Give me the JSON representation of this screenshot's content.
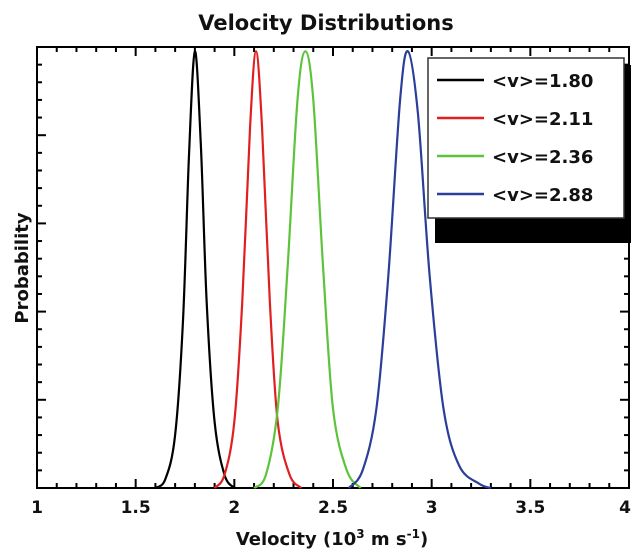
{
  "chart_data": {
    "type": "line",
    "title": "Velocity Distributions",
    "xlabel": "Velocity (10",
    "xlabel_sup1": "3",
    "xlabel_mid": " m s",
    "xlabel_sup2": "-1",
    "xlabel_end": ")",
    "ylabel": "Probability",
    "xlim": [
      1,
      4
    ],
    "ylim": [
      0,
      1
    ],
    "x_ticks": [
      "1",
      "1.5",
      "2",
      "2.5",
      "3",
      "3.5",
      "4"
    ],
    "grid": false,
    "legend_position": "top-right",
    "series": [
      {
        "name": "<v>=1.80",
        "color": "#000000",
        "mean": 1.8,
        "peak": 0.99,
        "points": [
          [
            1.6,
            0.0
          ],
          [
            1.65,
            0.02
          ],
          [
            1.7,
            0.12
          ],
          [
            1.74,
            0.38
          ],
          [
            1.77,
            0.75
          ],
          [
            1.8,
            0.99
          ],
          [
            1.83,
            0.78
          ],
          [
            1.86,
            0.42
          ],
          [
            1.9,
            0.15
          ],
          [
            1.95,
            0.03
          ],
          [
            2.0,
            0.0
          ]
        ]
      },
      {
        "name": "<v>=2.11",
        "color": "#e02020",
        "mean": 2.11,
        "peak": 0.99,
        "points": [
          [
            1.9,
            0.0
          ],
          [
            1.95,
            0.03
          ],
          [
            2.0,
            0.15
          ],
          [
            2.04,
            0.42
          ],
          [
            2.08,
            0.82
          ],
          [
            2.11,
            0.99
          ],
          [
            2.14,
            0.82
          ],
          [
            2.18,
            0.42
          ],
          [
            2.22,
            0.15
          ],
          [
            2.28,
            0.03
          ],
          [
            2.34,
            0.0
          ]
        ]
      },
      {
        "name": "<v>=2.36",
        "color": "#5cc43a",
        "mean": 2.36,
        "peak": 0.99,
        "points": [
          [
            2.1,
            0.0
          ],
          [
            2.16,
            0.03
          ],
          [
            2.22,
            0.18
          ],
          [
            2.27,
            0.5
          ],
          [
            2.32,
            0.88
          ],
          [
            2.36,
            0.99
          ],
          [
            2.4,
            0.88
          ],
          [
            2.45,
            0.5
          ],
          [
            2.5,
            0.18
          ],
          [
            2.57,
            0.04
          ],
          [
            2.64,
            0.0
          ]
        ]
      },
      {
        "name": "<v>=2.88",
        "color": "#2a3e9a",
        "mean": 2.88,
        "peak": 0.99,
        "points": [
          [
            2.58,
            0.0
          ],
          [
            2.65,
            0.04
          ],
          [
            2.72,
            0.18
          ],
          [
            2.78,
            0.48
          ],
          [
            2.84,
            0.88
          ],
          [
            2.88,
            0.99
          ],
          [
            2.93,
            0.85
          ],
          [
            2.99,
            0.48
          ],
          [
            3.06,
            0.18
          ],
          [
            3.14,
            0.05
          ],
          [
            3.24,
            0.01
          ],
          [
            3.3,
            0.0
          ]
        ]
      }
    ]
  }
}
